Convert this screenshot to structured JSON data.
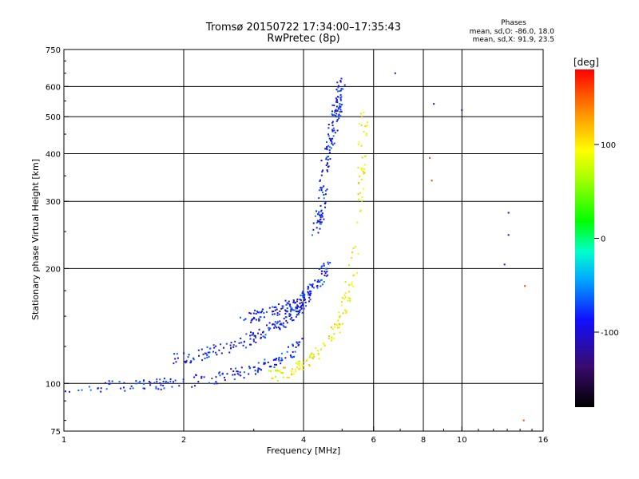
{
  "chart_data": {
    "type": "scatter",
    "title": "Tromsø 20150722 17:34:00–17:35:43",
    "subtitle": "RwPretec (8p)",
    "xlabel": "Frequency [MHz]",
    "ylabel": "Stationary phase Virtual Height [km]",
    "x_scale": "log2",
    "y_scale": "log",
    "xlim": [
      1,
      16
    ],
    "ylim": [
      75,
      750
    ],
    "x_ticks": [
      1,
      2,
      4,
      6,
      8,
      10,
      16
    ],
    "x_tick_labels": [
      "1",
      "2",
      "4",
      "6",
      "8",
      "10",
      "16"
    ],
    "y_ticks": [
      75,
      100,
      200,
      300,
      400,
      500,
      600,
      750
    ],
    "y_tick_labels": [
      "75",
      "100",
      "200",
      "300",
      "400",
      "500",
      "600",
      "750"
    ],
    "y_grid": [
      100,
      200,
      300,
      400,
      500,
      600
    ],
    "x_grid": [
      2,
      4,
      6,
      8,
      10
    ],
    "grid": true,
    "stats": {
      "title": "Phases",
      "line_o": "mean, sd,O: -86.0, 18.0",
      "line_x": "mean, sd,X:  91.9, 23.5"
    },
    "colorbar": {
      "label": "[deg]",
      "range": [
        -180,
        180
      ],
      "ticks": [
        -100,
        0,
        100
      ],
      "tick_labels": [
        "-100",
        "0",
        "100"
      ]
    },
    "series": [
      {
        "name": "O-mode (blue, ~ -86 deg)",
        "phase": -86,
        "traces": [
          {
            "f": [
              1.0,
              1.3,
              1.6,
              1.9,
              2.2,
              2.6,
              3.0,
              3.4,
              3.7,
              3.9
            ],
            "h": [
              96,
              98,
              99,
              100,
              102,
              105,
              109,
              114,
              120,
              128
            ]
          },
          {
            "f": [
              1.9,
              2.3,
              2.7,
              3.1,
              3.5,
              3.8,
              4.0
            ],
            "h": [
              116,
              120,
              126,
              134,
              143,
              152,
              160
            ]
          },
          {
            "f": [
              2.8,
              3.2,
              3.6,
              4.0,
              4.3,
              4.6
            ],
            "h": [
              148,
              152,
              158,
              166,
              180,
              205
            ]
          },
          {
            "f": [
              4.3,
              4.45,
              4.55,
              4.7,
              4.85,
              5.0
            ],
            "h": [
              240,
              300,
              380,
              450,
              520,
              620
            ]
          }
        ]
      },
      {
        "name": "X-mode (yellow, ~ +92 deg)",
        "phase": 92,
        "traces": [
          {
            "f": [
              3.3,
              3.7,
              4.1,
              4.6,
              5.0,
              5.3,
              5.5,
              5.6,
              5.7
            ],
            "h": [
              104,
              108,
              115,
              128,
              150,
              190,
              260,
              380,
              530
            ]
          }
        ]
      },
      {
        "name": "scattered echoes",
        "phase": 160,
        "points": [
          [
            6.8,
            650
          ],
          [
            8.5,
            540
          ],
          [
            8.3,
            390
          ],
          [
            8.4,
            340
          ],
          [
            10.0,
            520
          ],
          [
            13.1,
            280
          ],
          [
            13.1,
            245
          ],
          [
            12.8,
            205
          ],
          [
            14.3,
            80
          ],
          [
            14.4,
            180
          ]
        ]
      }
    ]
  }
}
